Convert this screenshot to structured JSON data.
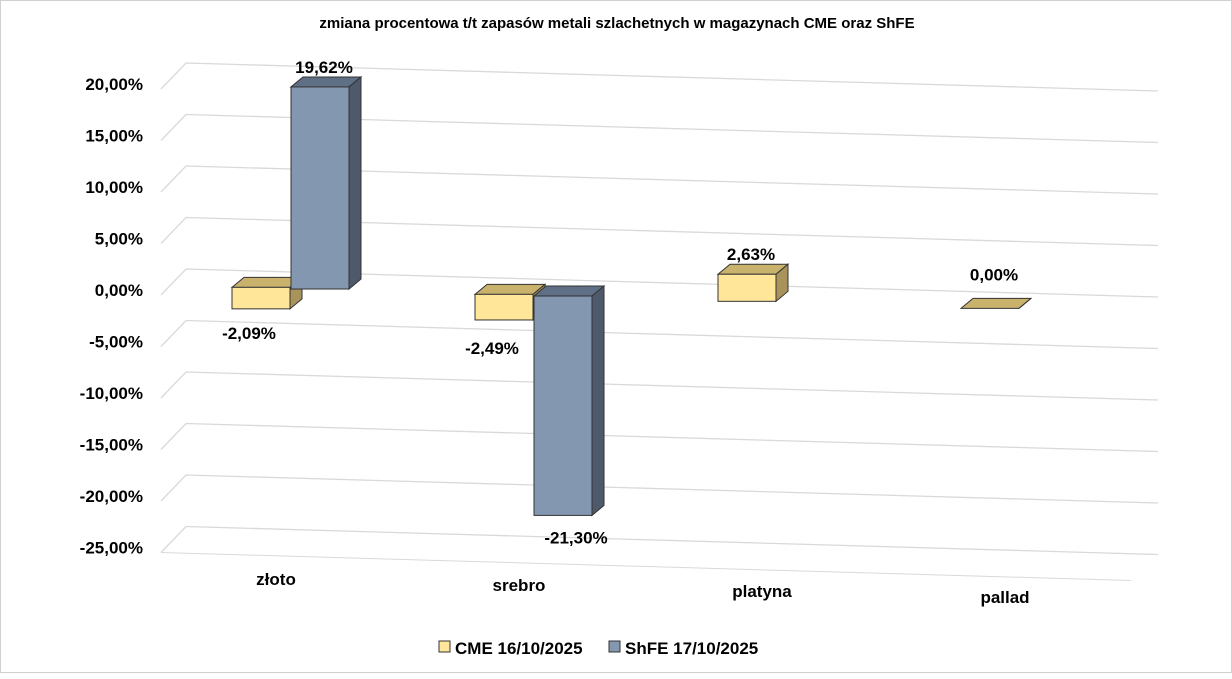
{
  "chart_data": {
    "type": "bar",
    "title": "zmiana procentowa t/t zapasów metali szlachetnych w magazynach CME oraz ShFE",
    "categories": [
      "złoto",
      "srebro",
      "platyna",
      "pallad"
    ],
    "series": [
      {
        "name": "CME 16/10/2025",
        "values": [
          -2.09,
          -2.49,
          2.63,
          0.0
        ],
        "labels": [
          "-2,09%",
          "-2,49%",
          "2,63%",
          "0,00%"
        ],
        "color": "#FFE699",
        "top_color": "#C9B26B",
        "side_color": "#A8935A"
      },
      {
        "name": "ShFE 17/10/2025",
        "values": [
          19.62,
          -21.3,
          null,
          null
        ],
        "labels": [
          "19,62%",
          "-21,30%",
          null,
          null
        ],
        "color": "#8497B0",
        "top_color": "#5E6F86",
        "side_color": "#4E5A6C"
      }
    ],
    "yticks": [
      20,
      15,
      10,
      5,
      0,
      -5,
      -10,
      -15,
      -20,
      -25
    ],
    "ytick_labels": [
      "20,00%",
      "15,00%",
      "10,00%",
      "5,00%",
      "0,00%",
      "-5,00%",
      "-10,00%",
      "-15,00%",
      "-20,00%",
      "-25,00%"
    ],
    "ylim": [
      -25,
      20
    ],
    "grid": true,
    "legend": "bottom"
  }
}
